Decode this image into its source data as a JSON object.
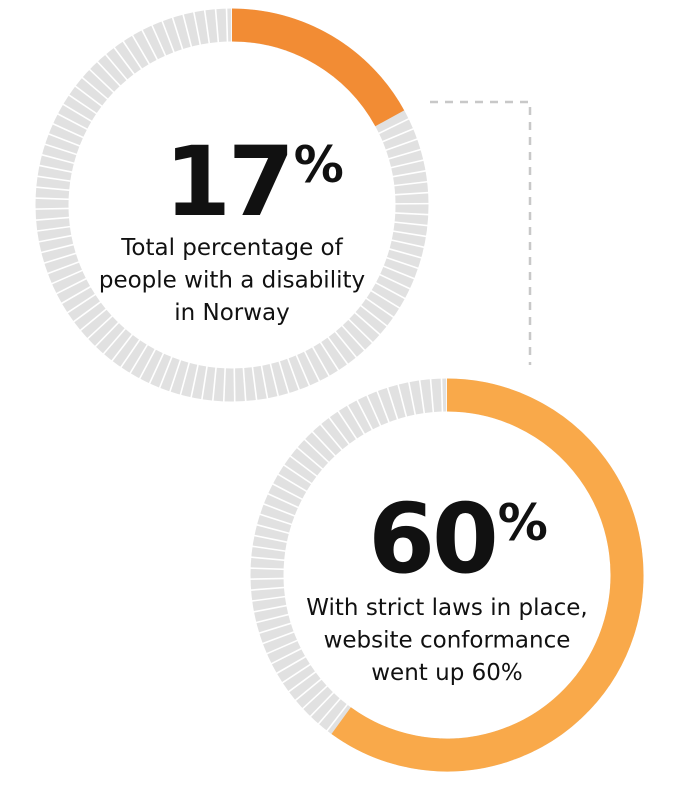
{
  "chart_data": [
    {
      "type": "donut",
      "values": [
        17
      ],
      "value_labels": [
        "17"
      ],
      "unit": "%",
      "color": "#f28c34",
      "description": [
        "Total percentage of",
        "people with a disability",
        "in Norway"
      ]
    },
    {
      "type": "donut",
      "values": [
        60
      ],
      "value_labels": [
        "60"
      ],
      "unit": "%",
      "color": "#f9a94a",
      "description": [
        "With strict laws in place,",
        "website conformance",
        "went up 60%"
      ]
    }
  ]
}
